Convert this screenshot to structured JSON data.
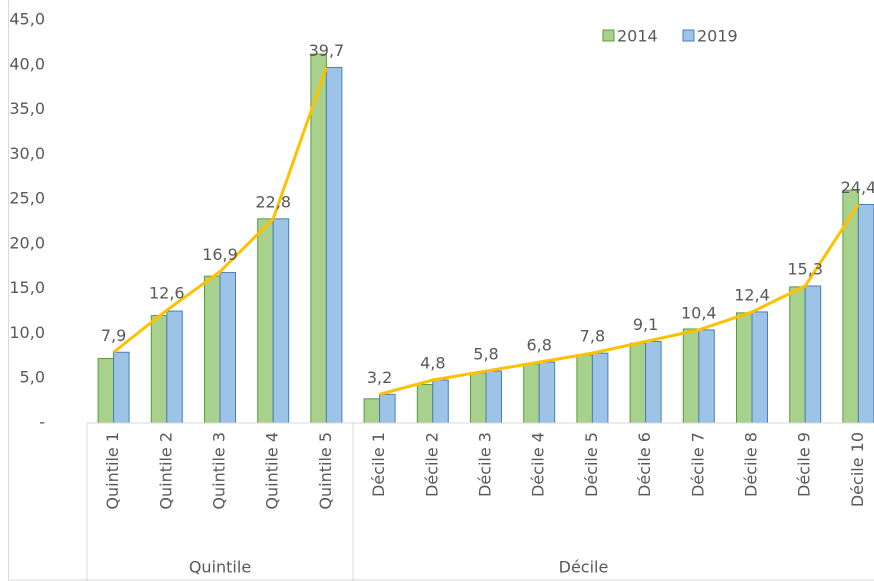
{
  "chart_data": {
    "type": "bar",
    "categories": [
      "Quintile 1",
      "Quintile 2",
      "Quintile 3",
      "Quintile 4",
      "Quintile 5",
      "Décile 1",
      "Décile 2",
      "Décile 3",
      "Décile 4",
      "Décile 5",
      "Décile 6",
      "Décile 7",
      "Décile 8",
      "Décile 9",
      "Décile 10"
    ],
    "groups": [
      {
        "label": "Quintile",
        "count": 5
      },
      {
        "label": "Décile",
        "count": 10
      }
    ],
    "series": [
      {
        "name": "2014",
        "color": "#a9d18e",
        "values": [
          7.2,
          12.0,
          16.4,
          22.8,
          41.2,
          2.7,
          4.3,
          5.6,
          6.6,
          7.6,
          8.9,
          10.5,
          12.3,
          15.2,
          26.0
        ]
      },
      {
        "name": "2019",
        "color": "#9dc3e6",
        "values": [
          7.9,
          12.5,
          16.8,
          22.8,
          39.7,
          3.2,
          4.8,
          5.8,
          6.8,
          7.8,
          9.1,
          10.4,
          12.4,
          15.3,
          24.4
        ]
      },
      {
        "type": "line",
        "color": "#ffc000",
        "values": [
          7.9,
          12.6,
          16.9,
          22.8,
          39.7,
          3.2,
          4.8,
          5.8,
          6.8,
          7.8,
          9.1,
          10.4,
          12.4,
          15.3,
          24.4
        ],
        "value_labels": [
          "7,9",
          "12,6",
          "16,9",
          "22,8",
          "39,7",
          "3,2",
          "4,8",
          "5,8",
          "6,8",
          "7,8",
          "9,1",
          "10,4",
          "12,4",
          "15,3",
          "24,4"
        ]
      }
    ],
    "ylim": [
      0,
      45
    ],
    "yticks": [
      {
        "value": 0,
        "label": "-"
      },
      {
        "value": 5,
        "label": "5,0"
      },
      {
        "value": 10,
        "label": "10,0"
      },
      {
        "value": 15,
        "label": "15,0"
      },
      {
        "value": 20,
        "label": "20,0"
      },
      {
        "value": 25,
        "label": "25,0"
      },
      {
        "value": 30,
        "label": "30,0"
      },
      {
        "value": 35,
        "label": "35,0"
      },
      {
        "value": 40,
        "label": "40,0"
      },
      {
        "value": 45,
        "label": "45,0"
      }
    ],
    "legend": "top-right"
  }
}
